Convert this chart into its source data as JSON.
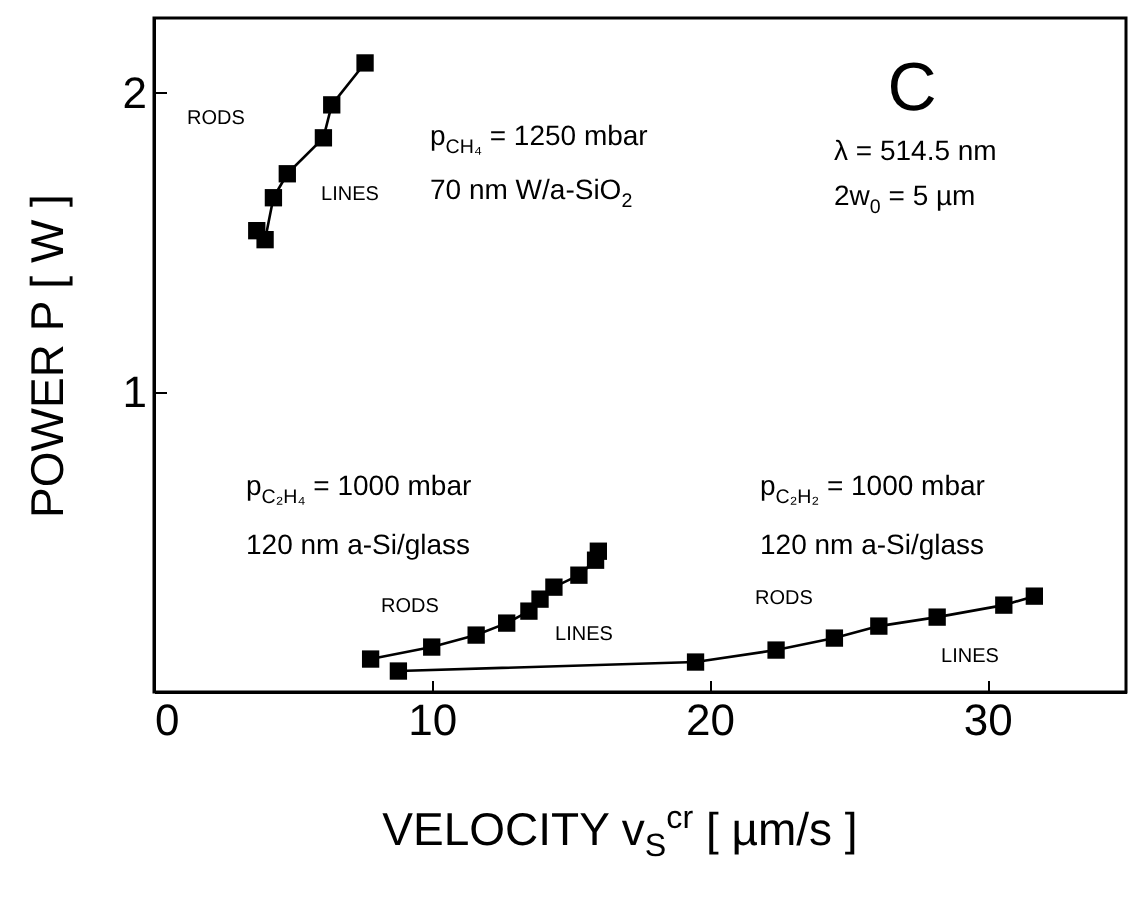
{
  "chart_data": {
    "type": "line",
    "title": "C",
    "xlabel": "VELOCITY v$_{S}$$^{cr}$ [ µm/s ]",
    "ylabel": "POWER P [ W ]",
    "xlim": [
      0,
      35
    ],
    "ylim": [
      0,
      2.25
    ],
    "xticks": [
      0,
      10,
      20,
      30
    ],
    "yticks": [
      1,
      2
    ],
    "grid": false,
    "marker": "square",
    "line_style": "solid",
    "series": [
      {
        "color": "#000000",
        "x": [
          3.7,
          4.0,
          4.3,
          4.8,
          6.1,
          6.4,
          7.6
        ],
        "values": [
          1.54,
          1.51,
          1.65,
          1.73,
          1.85,
          1.96,
          2.1
        ]
      },
      {
        "color": "#000000",
        "x": [
          7.8,
          10.0,
          11.6,
          12.7,
          13.5,
          13.9,
          14.4,
          15.3,
          15.9,
          16.0
        ],
        "values": [
          0.11,
          0.15,
          0.19,
          0.23,
          0.27,
          0.31,
          0.35,
          0.39,
          0.44,
          0.47
        ]
      },
      {
        "color": "#000000",
        "x": [
          8.8,
          19.5,
          22.4,
          24.5,
          26.1,
          28.2,
          30.6,
          31.7
        ],
        "values": [
          0.07,
          0.1,
          0.14,
          0.18,
          0.22,
          0.25,
          0.29,
          0.32
        ]
      }
    ],
    "annotations": [
      "RODS",
      "LINES",
      "p$_{CH₄}$ = 1250 mbar",
      "70 nm W/a-SiO$_{2}$",
      "λ = 514.5 nm",
      "2w$_{0}$ = 5 µm",
      "p$_{C₂H₄}$ = 1000 mbar",
      "120 nm a-Si/glass",
      "p$_{C₂H₂}$ = 1000 mbar",
      "120 nm a-Si/glass",
      "RODS",
      "LINES",
      "RODS",
      "LINES"
    ]
  }
}
